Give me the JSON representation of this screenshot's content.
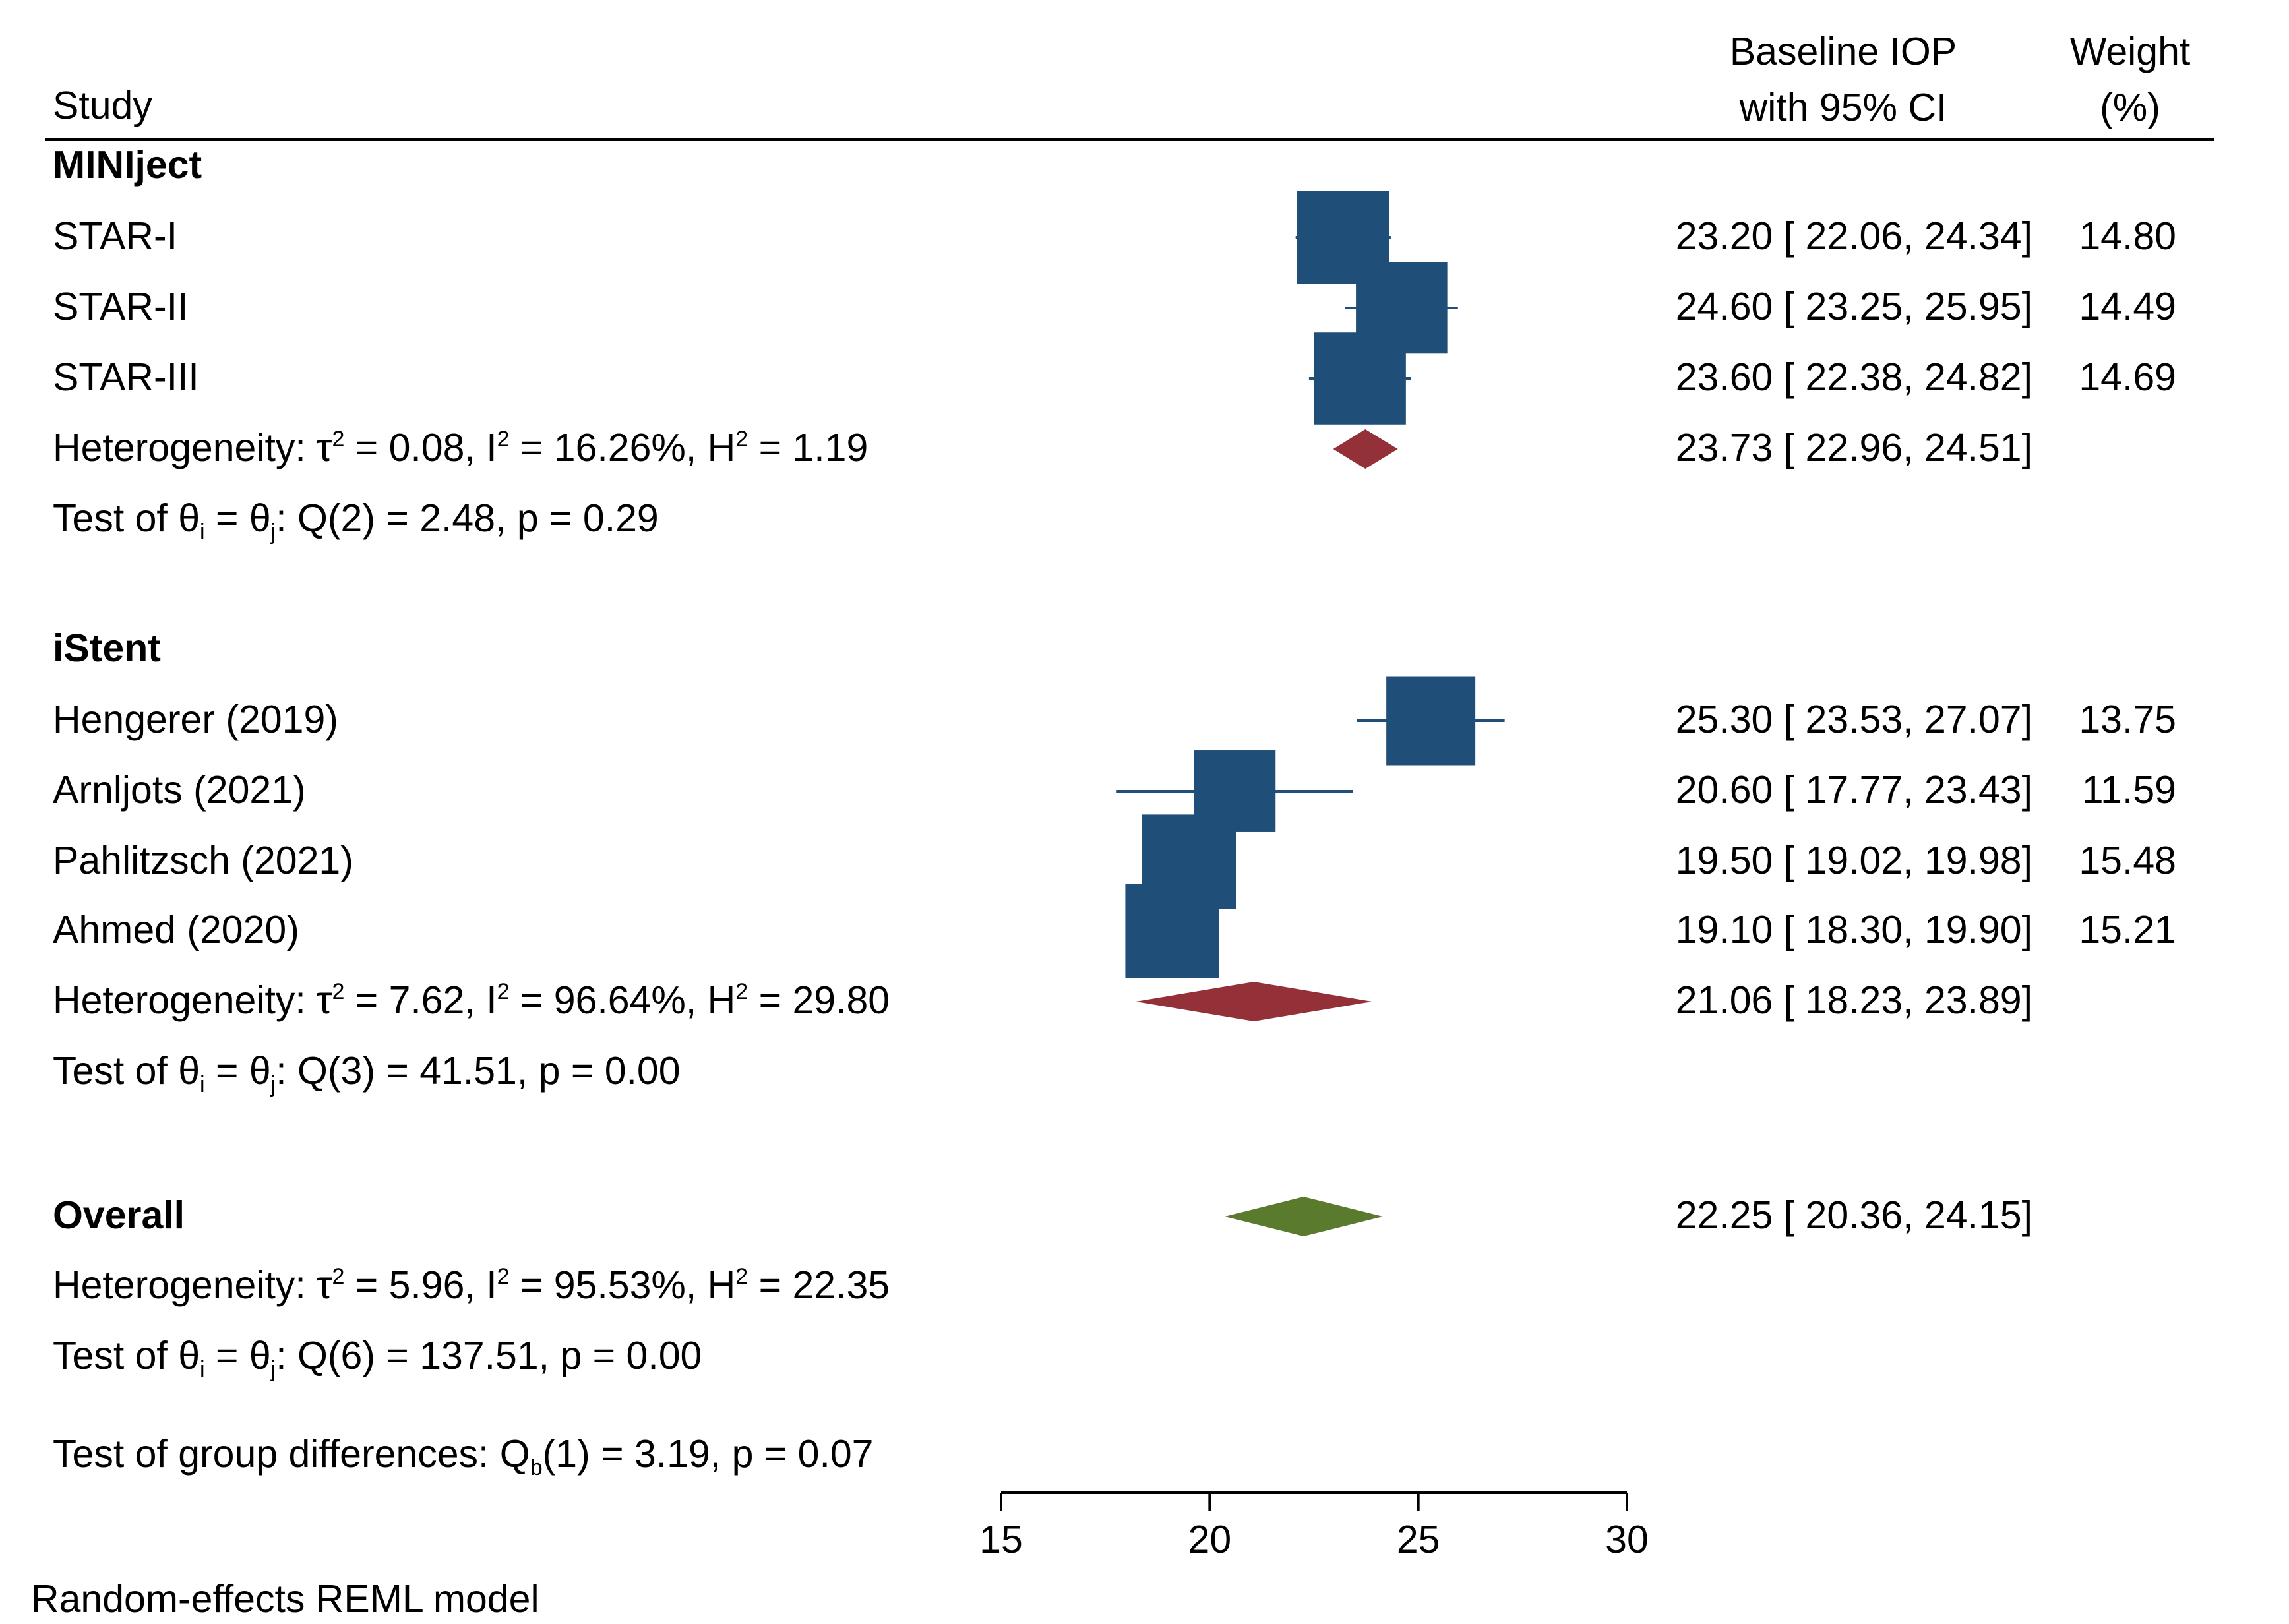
{
  "header": {
    "study_label": "Study",
    "effect_label_line1": "Baseline IOP",
    "effect_label_line2": "with 95% CI",
    "weight_label_line1": "Weight",
    "weight_label_line2": "(%)"
  },
  "footer_note": "Random-effects REML model",
  "group_diff": {
    "prefix": "Test of group differences: Q",
    "sub": "b",
    "suffix": "(1) = 3.19, p = 0.07"
  },
  "colors": {
    "study_marker": "#1f4e79",
    "group1_diamond": "#943138",
    "group2_diamond": "#943138",
    "overall_diamond": "#5a7a2e",
    "text": "#000000"
  },
  "chart_data": {
    "type": "forest",
    "xlim": [
      15,
      30
    ],
    "xticks": [
      15,
      20,
      25,
      30
    ],
    "groups": [
      {
        "name": "MINIject",
        "studies": [
          {
            "name": "STAR-I",
            "estimate": 23.2,
            "ci_low": 22.06,
            "ci_high": 24.34,
            "ci_text": "23.20 [ 22.06,  24.34]",
            "weight": 14.8,
            "weight_text": "14.80"
          },
          {
            "name": "STAR-II",
            "estimate": 24.6,
            "ci_low": 23.25,
            "ci_high": 25.95,
            "ci_text": "24.60 [ 23.25,  25.95]",
            "weight": 14.49,
            "weight_text": "14.49"
          },
          {
            "name": "STAR-III",
            "estimate": 23.6,
            "ci_low": 22.38,
            "ci_high": 24.82,
            "ci_text": "23.60 [ 22.38,  24.82]",
            "weight": 14.69,
            "weight_text": "14.69"
          }
        ],
        "pooled": {
          "estimate": 23.73,
          "ci_low": 22.96,
          "ci_high": 24.51,
          "ci_text": "23.73 [ 22.96,  24.51]"
        },
        "heterogeneity": {
          "tau2": "0.08",
          "i2": "16.26%",
          "h2": "1.19"
        },
        "test": "Q(2) = 2.48, p = 0.29"
      },
      {
        "name": "iStent",
        "studies": [
          {
            "name": "Hengerer (2019)",
            "estimate": 25.3,
            "ci_low": 23.53,
            "ci_high": 27.07,
            "ci_text": "25.30 [ 23.53,  27.07]",
            "weight": 13.75,
            "weight_text": "13.75"
          },
          {
            "name": "Arnljots (2021)",
            "estimate": 20.6,
            "ci_low": 17.77,
            "ci_high": 23.43,
            "ci_text": "20.60 [ 17.77,  23.43]",
            "weight": 11.59,
            "weight_text": "11.59"
          },
          {
            "name": "Pahlitzsch (2021)",
            "estimate": 19.5,
            "ci_low": 19.02,
            "ci_high": 19.98,
            "ci_text": "19.50 [ 19.02,  19.98]",
            "weight": 15.48,
            "weight_text": "15.48"
          },
          {
            "name": "Ahmed (2020)",
            "estimate": 19.1,
            "ci_low": 18.3,
            "ci_high": 19.9,
            "ci_text": "19.10 [ 18.30,  19.90]",
            "weight": 15.21,
            "weight_text": "15.21"
          }
        ],
        "pooled": {
          "estimate": 21.06,
          "ci_low": 18.23,
          "ci_high": 23.89,
          "ci_text": "21.06 [ 18.23,  23.89]"
        },
        "heterogeneity": {
          "tau2": "7.62",
          "i2": "96.64%",
          "h2": "29.80"
        },
        "test": "Q(3) = 41.51, p = 0.00"
      }
    ],
    "overall": {
      "name": "Overall",
      "estimate": 22.25,
      "ci_low": 20.36,
      "ci_high": 24.15,
      "ci_text": "22.25 [ 20.36,  24.15]",
      "heterogeneity": {
        "tau2": "5.96",
        "i2": "95.53%",
        "h2": "22.35"
      },
      "test": "Q(6) = 137.51, p = 0.00"
    }
  }
}
